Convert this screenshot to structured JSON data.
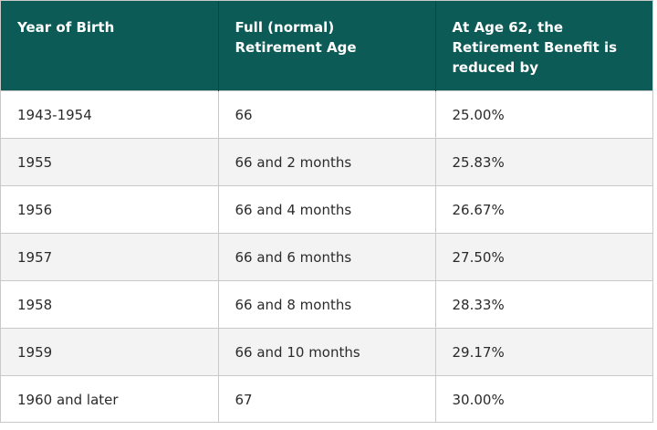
{
  "table": {
    "header": [
      "Year of Birth",
      "Full (normal) Retirement Age",
      "At Age 62, the Retirement Benefit is reduced by"
    ],
    "rows": [
      [
        "1943-1954",
        "66",
        "25.00%"
      ],
      [
        "1955",
        "66 and 2 months",
        "25.83%"
      ],
      [
        "1956",
        "66 and 4 months",
        "26.67%"
      ],
      [
        "1957",
        "66 and 6 months",
        "27.50%"
      ],
      [
        "1958",
        "66 and 8 months",
        "28.33%"
      ],
      [
        "1959",
        "66 and 10 months",
        "29.17%"
      ],
      [
        "1960 and later",
        "67",
        "30.00%"
      ]
    ]
  }
}
